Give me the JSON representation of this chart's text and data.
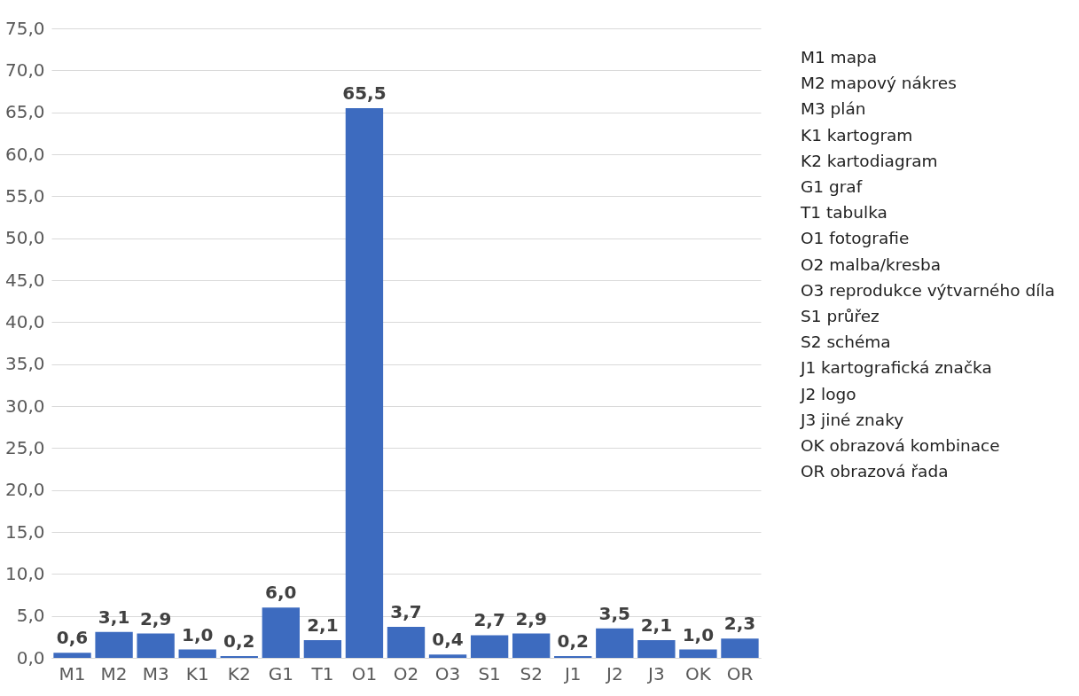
{
  "chart_data": {
    "type": "bar",
    "categories": [
      "M1",
      "M2",
      "M3",
      "K1",
      "K2",
      "G1",
      "T1",
      "O1",
      "O2",
      "O3",
      "S1",
      "S2",
      "J1",
      "J2",
      "J3",
      "OK",
      "OR"
    ],
    "values": [
      0.6,
      3.1,
      2.9,
      1.0,
      0.2,
      6.0,
      2.1,
      65.5,
      3.7,
      0.4,
      2.7,
      2.9,
      0.2,
      3.5,
      2.1,
      1.0,
      2.3
    ],
    "value_labels": [
      "0,6",
      "3,1",
      "2,9",
      "1,0",
      "0,2",
      "6,0",
      "2,1",
      "65,5",
      "3,7",
      "0,4",
      "2,7",
      "2,9",
      "0,2",
      "3,5",
      "2,1",
      "1,0",
      "2,3"
    ],
    "color": "#3d6bbf",
    "ylim": [
      0,
      75
    ],
    "yticks": [
      {
        "value": 0,
        "label": "0,0"
      },
      {
        "value": 5,
        "label": "5,0"
      },
      {
        "value": 10,
        "label": "10,0"
      },
      {
        "value": 15,
        "label": "15,0"
      },
      {
        "value": 20,
        "label": "20,0"
      },
      {
        "value": 25,
        "label": "25,0"
      },
      {
        "value": 30,
        "label": "30,0"
      },
      {
        "value": 35,
        "label": "35,0"
      },
      {
        "value": 40,
        "label": "40,0"
      },
      {
        "value": 45,
        "label": "45,0"
      },
      {
        "value": 50,
        "label": "50,0"
      },
      {
        "value": 55,
        "label": "55,0"
      },
      {
        "value": 60,
        "label": "60,0"
      },
      {
        "value": 65,
        "label": "65,0"
      },
      {
        "value": 70,
        "label": "70,0"
      },
      {
        "value": 75,
        "label": "75,0"
      }
    ],
    "grid": "y",
    "annotations": [
      "M1 mapa",
      "M2 mapový nákres",
      "M3 plán",
      "K1 kartogram",
      "K2 kartodiagram",
      "G1 graf",
      "T1 tabulka",
      "O1 fotografie",
      "O2 malba/kresba",
      "O3 reprodukce výtvarného díla",
      "S1 průřez",
      "S2 schéma",
      "J1 kartografická značka",
      "J2 logo",
      "J3 jiné znaky",
      "OK obrazová kombinace",
      "OR obrazová řada"
    ]
  }
}
